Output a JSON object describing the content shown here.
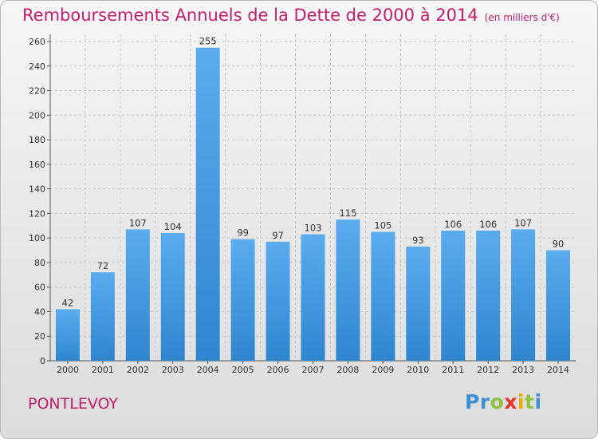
{
  "title": "Remboursements Annuels de la Dette de 2000 à 2014",
  "subtitle": "(en milliers d'€)",
  "city": "PONTLEVOY",
  "logo": {
    "text": "Proxiti",
    "letters": [
      {
        "ch": "P",
        "color": "#3a8fd6"
      },
      {
        "ch": "r",
        "color": "#3a8fd6"
      },
      {
        "ch": "o",
        "color": "#8fc23e"
      },
      {
        "ch": "x",
        "color": "#e8332a"
      },
      {
        "ch": "i",
        "color": "#f2a900"
      },
      {
        "ch": "t",
        "color": "#8fc23e"
      },
      {
        "ch": "i",
        "color": "#3a8fd6"
      }
    ]
  },
  "colors": {
    "title": "#c0206c",
    "bar_top": "#5aacee",
    "bar_bottom": "#2f86cf",
    "grid": "#c8c8c8"
  },
  "chart_data": {
    "type": "bar",
    "title": "Remboursements Annuels de la Dette de 2000 à 2014",
    "subtitle": "(en milliers d'€)",
    "categories": [
      "2000",
      "2001",
      "2002",
      "2003",
      "2004",
      "2005",
      "2006",
      "2007",
      "2008",
      "2009",
      "2010",
      "2011",
      "2012",
      "2013",
      "2014"
    ],
    "values": [
      42,
      72,
      107,
      104,
      255,
      99,
      97,
      103,
      115,
      105,
      93,
      106,
      106,
      107,
      90
    ],
    "ylim": [
      0,
      260
    ],
    "yticks": [
      0,
      20,
      40,
      60,
      80,
      100,
      120,
      140,
      160,
      180,
      200,
      220,
      240,
      260
    ],
    "grid": true,
    "data_labels": true
  }
}
